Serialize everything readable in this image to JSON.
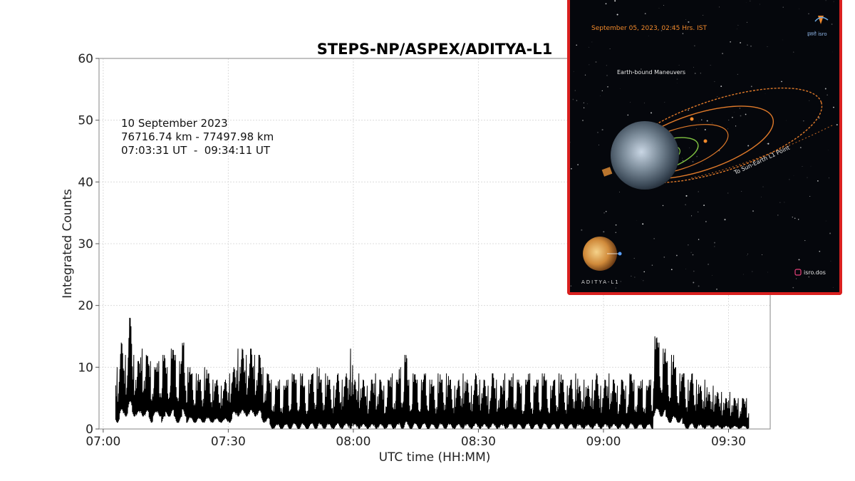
{
  "chart_data": {
    "type": "line",
    "title": "STEPS-NP/ASPEX/ADITYA-L1",
    "xlabel": "UTC time (HH:MM)",
    "ylabel": "Integrated Counts",
    "xlim": [
      "07:00",
      "09:40"
    ],
    "ylim": [
      0,
      60
    ],
    "x_ticks": [
      "07:00",
      "07:30",
      "08:00",
      "08:30",
      "09:00",
      "09:30"
    ],
    "y_ticks": [
      "0",
      "10",
      "20",
      "30",
      "40",
      "50",
      "60"
    ],
    "grid": true,
    "annotation": {
      "date": "10 September 2023",
      "distance": "76716.74 km - 77497.98 km",
      "time_range": "07:03:31 UT  -  09:34:11 UT"
    },
    "series": [
      {
        "color": "#000000",
        "x": [
          "07:03",
          "07:04",
          "07:05",
          "07:06",
          "07:07",
          "07:08",
          "07:09",
          "07:10",
          "07:11",
          "07:12",
          "07:13",
          "07:14",
          "07:15",
          "07:16",
          "07:17",
          "07:18",
          "07:19",
          "07:20",
          "07:21",
          "07:22",
          "07:23",
          "07:24",
          "07:25",
          "07:26",
          "07:27",
          "07:28",
          "07:29",
          "07:30",
          "07:31",
          "07:32",
          "07:33",
          "07:34",
          "07:35",
          "07:36",
          "07:37",
          "07:38",
          "07:39",
          "07:40",
          "07:41",
          "07:42",
          "07:43",
          "07:44",
          "07:45",
          "07:46",
          "07:47",
          "07:48",
          "07:49",
          "07:50",
          "07:51",
          "07:52",
          "07:53",
          "07:54",
          "07:55",
          "07:56",
          "07:57",
          "07:58",
          "07:59",
          "08:00",
          "08:01",
          "08:02",
          "08:03",
          "08:04",
          "08:05",
          "08:06",
          "08:07",
          "08:08",
          "08:09",
          "08:10",
          "08:11",
          "08:12",
          "08:13",
          "08:14",
          "08:15",
          "08:16",
          "08:17",
          "08:18",
          "08:19",
          "08:20",
          "08:21",
          "08:22",
          "08:23",
          "08:24",
          "08:25",
          "08:26",
          "08:27",
          "08:28",
          "08:29",
          "08:30",
          "08:31",
          "08:32",
          "08:33",
          "08:34",
          "08:35",
          "08:36",
          "08:37",
          "08:38",
          "08:39",
          "08:40",
          "08:41",
          "08:42",
          "08:43",
          "08:44",
          "08:45",
          "08:46",
          "08:47",
          "08:48",
          "08:49",
          "08:50",
          "08:51",
          "08:52",
          "08:53",
          "08:54",
          "08:55",
          "08:56",
          "08:57",
          "08:58",
          "08:59",
          "09:00",
          "09:01",
          "09:02",
          "09:03",
          "09:04",
          "09:05",
          "09:06",
          "09:07",
          "09:08",
          "09:09",
          "09:10",
          "09:11",
          "09:12",
          "09:13",
          "09:14",
          "09:15",
          "09:16",
          "09:17",
          "09:18",
          "09:19",
          "09:20",
          "09:21",
          "09:22",
          "09:23",
          "09:24",
          "09:25",
          "09:26",
          "09:27",
          "09:28",
          "09:29",
          "09:30",
          "09:31",
          "09:32",
          "09:33",
          "09:34"
        ],
        "max": [
          10,
          14,
          12,
          18,
          12,
          11,
          13,
          12,
          11,
          10,
          11,
          12,
          10,
          13,
          12,
          11,
          14,
          10,
          9,
          9,
          8,
          10,
          9,
          8,
          8,
          7,
          8,
          9,
          10,
          13,
          13,
          12,
          13,
          12,
          12,
          10,
          9,
          8,
          7,
          8,
          7,
          8,
          9,
          8,
          9,
          7,
          8,
          9,
          10,
          8,
          9,
          8,
          7,
          9,
          8,
          9,
          13,
          8,
          9,
          8,
          7,
          8,
          9,
          8,
          7,
          8,
          9,
          8,
          10,
          12,
          8,
          9,
          8,
          8,
          9,
          8,
          7,
          9,
          8,
          9,
          8,
          7,
          8,
          9,
          8,
          7,
          9,
          8,
          8,
          7,
          9,
          8,
          7,
          9,
          8,
          9,
          8,
          7,
          8,
          9,
          7,
          8,
          9,
          8,
          7,
          8,
          9,
          8,
          7,
          8,
          9,
          7,
          8,
          7,
          8,
          9,
          7,
          8,
          9,
          8,
          7,
          8,
          7,
          9,
          8,
          7,
          8,
          7,
          8,
          15,
          14,
          13,
          11,
          12,
          10,
          9,
          9,
          8,
          9,
          8,
          7,
          8,
          6,
          7,
          6,
          6,
          5,
          6,
          5,
          5,
          5,
          5
        ],
        "min": [
          1,
          2,
          2,
          3,
          2,
          2,
          2,
          2,
          1,
          2,
          2,
          1,
          2,
          2,
          1,
          1,
          2,
          1,
          1,
          1,
          1,
          1,
          1,
          1,
          1,
          1,
          1,
          1,
          2,
          2,
          2,
          2,
          2,
          2,
          2,
          1,
          1,
          0,
          0,
          0,
          0,
          0,
          0,
          0,
          0,
          0,
          0,
          0,
          0,
          0,
          0,
          0,
          0,
          0,
          0,
          0,
          0,
          0,
          0,
          0,
          0,
          0,
          0,
          0,
          0,
          0,
          0,
          0,
          0,
          0,
          0,
          0,
          0,
          0,
          0,
          0,
          0,
          0,
          0,
          0,
          0,
          0,
          0,
          0,
          0,
          0,
          0,
          0,
          0,
          0,
          0,
          0,
          0,
          0,
          0,
          0,
          0,
          0,
          0,
          0,
          0,
          0,
          0,
          0,
          0,
          0,
          0,
          0,
          0,
          0,
          0,
          0,
          0,
          0,
          0,
          0,
          0,
          0,
          0,
          0,
          0,
          0,
          0,
          0,
          0,
          0,
          0,
          0,
          0,
          2,
          2,
          2,
          1,
          1,
          1,
          1,
          0,
          0,
          0,
          0,
          0,
          0,
          0,
          0,
          0,
          0,
          0,
          0,
          0,
          0,
          0,
          0
        ]
      }
    ]
  },
  "inset": {
    "date_text": "September 05, 2023, 02:45 Hrs. IST",
    "org_text": "इसरो isro",
    "maneuvers_label": "Earth-bound Maneuvers",
    "l1_label": "To Sun-Earth L1 Point",
    "mission_label": "ADITYA-L1",
    "handle": "isro.dos",
    "colors": {
      "border": "#d9201f",
      "orbit_outer": "#e07a2a",
      "orbit_inner": "#7fc241",
      "accent": "#f28a2b"
    }
  }
}
